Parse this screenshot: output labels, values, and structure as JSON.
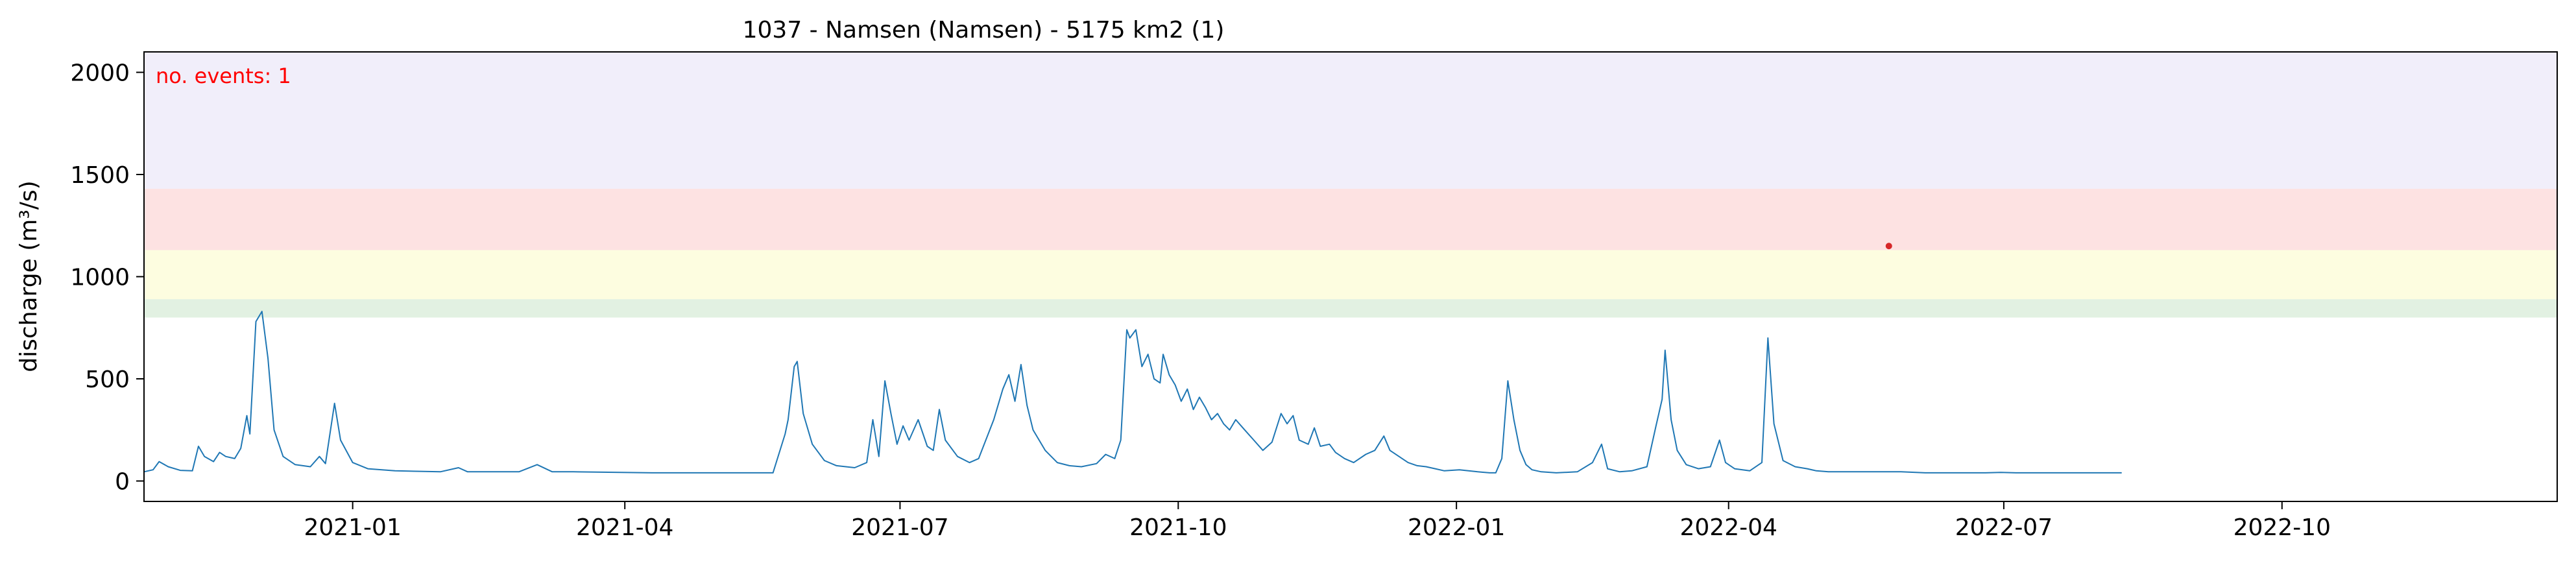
{
  "chart_data": {
    "type": "line",
    "title": "1037 - Namsen (Namsen) - 5175 km2 (1)",
    "xlabel": "",
    "ylabel": "discharge (m³/s)",
    "ylim": [
      -100,
      2100
    ],
    "xlim": [
      "2020-10-24",
      "2022-12-31"
    ],
    "grid": false,
    "y_ticks": [
      0,
      500,
      1000,
      1500,
      2000
    ],
    "x_ticks": [
      {
        "date": "2021-01-01",
        "label": "2021-01"
      },
      {
        "date": "2021-04-01",
        "label": "2021-04"
      },
      {
        "date": "2021-07-01",
        "label": "2021-07"
      },
      {
        "date": "2021-10-01",
        "label": "2021-10"
      },
      {
        "date": "2022-01-01",
        "label": "2022-01"
      },
      {
        "date": "2022-04-01",
        "label": "2022-04"
      },
      {
        "date": "2022-07-01",
        "label": "2022-07"
      },
      {
        "date": "2022-10-01",
        "label": "2022-10"
      }
    ],
    "threshold_bands": [
      {
        "from": 800,
        "to": 890,
        "color": "#e2f1e2"
      },
      {
        "from": 890,
        "to": 1130,
        "color": "#fdfde0"
      },
      {
        "from": 1130,
        "to": 1430,
        "color": "#fde2e2"
      },
      {
        "from": 1430,
        "to": 2100,
        "color": "#f1eefa"
      }
    ],
    "annotation": {
      "text": "no. events: 1",
      "color": "#ff0000"
    },
    "events": [
      {
        "date": "2022-05-24",
        "value": 1150,
        "color": "#d62728"
      }
    ],
    "series": [
      {
        "color": "#1f77b4",
        "points": [
          [
            "2020-10-24",
            45
          ],
          [
            "2020-10-27",
            55
          ],
          [
            "2020-10-29",
            95
          ],
          [
            "2020-11-01",
            70
          ],
          [
            "2020-11-05",
            52
          ],
          [
            "2020-11-09",
            50
          ],
          [
            "2020-11-11",
            170
          ],
          [
            "2020-11-13",
            120
          ],
          [
            "2020-11-16",
            95
          ],
          [
            "2020-11-18",
            140
          ],
          [
            "2020-11-20",
            120
          ],
          [
            "2020-11-23",
            110
          ],
          [
            "2020-11-25",
            160
          ],
          [
            "2020-11-27",
            320
          ],
          [
            "2020-11-28",
            230
          ],
          [
            "2020-11-30",
            780
          ],
          [
            "2020-12-02",
            830
          ],
          [
            "2020-12-04",
            600
          ],
          [
            "2020-12-06",
            250
          ],
          [
            "2020-12-09",
            120
          ],
          [
            "2020-12-13",
            80
          ],
          [
            "2020-12-18",
            70
          ],
          [
            "2020-12-21",
            120
          ],
          [
            "2020-12-23",
            85
          ],
          [
            "2020-12-26",
            380
          ],
          [
            "2020-12-28",
            200
          ],
          [
            "2021-01-01",
            90
          ],
          [
            "2021-01-06",
            60
          ],
          [
            "2021-01-15",
            50
          ],
          [
            "2021-01-30",
            45
          ],
          [
            "2021-02-05",
            65
          ],
          [
            "2021-02-08",
            45
          ],
          [
            "2021-02-25",
            45
          ],
          [
            "2021-03-03",
            80
          ],
          [
            "2021-03-08",
            45
          ],
          [
            "2021-03-15",
            45
          ],
          [
            "2021-04-10",
            40
          ],
          [
            "2021-04-25",
            40
          ],
          [
            "2021-05-10",
            40
          ],
          [
            "2021-05-20",
            40
          ],
          [
            "2021-05-24",
            230
          ],
          [
            "2021-05-25",
            300
          ],
          [
            "2021-05-27",
            560
          ],
          [
            "2021-05-28",
            585
          ],
          [
            "2021-05-30",
            330
          ],
          [
            "2021-06-02",
            180
          ],
          [
            "2021-06-06",
            100
          ],
          [
            "2021-06-10",
            75
          ],
          [
            "2021-06-16",
            65
          ],
          [
            "2021-06-20",
            90
          ],
          [
            "2021-06-22",
            300
          ],
          [
            "2021-06-24",
            120
          ],
          [
            "2021-06-26",
            490
          ],
          [
            "2021-06-28",
            330
          ],
          [
            "2021-06-30",
            180
          ],
          [
            "2021-07-02",
            270
          ],
          [
            "2021-07-04",
            200
          ],
          [
            "2021-07-07",
            300
          ],
          [
            "2021-07-10",
            170
          ],
          [
            "2021-07-12",
            150
          ],
          [
            "2021-07-14",
            350
          ],
          [
            "2021-07-16",
            200
          ],
          [
            "2021-07-20",
            120
          ],
          [
            "2021-07-24",
            90
          ],
          [
            "2021-07-27",
            110
          ],
          [
            "2021-08-01",
            300
          ],
          [
            "2021-08-04",
            450
          ],
          [
            "2021-08-06",
            520
          ],
          [
            "2021-08-08",
            390
          ],
          [
            "2021-08-10",
            570
          ],
          [
            "2021-08-12",
            370
          ],
          [
            "2021-08-14",
            250
          ],
          [
            "2021-08-18",
            150
          ],
          [
            "2021-08-22",
            90
          ],
          [
            "2021-08-26",
            75
          ],
          [
            "2021-08-30",
            70
          ],
          [
            "2021-09-04",
            85
          ],
          [
            "2021-09-07",
            130
          ],
          [
            "2021-09-10",
            110
          ],
          [
            "2021-09-12",
            200
          ],
          [
            "2021-09-14",
            740
          ],
          [
            "2021-09-15",
            700
          ],
          [
            "2021-09-17",
            740
          ],
          [
            "2021-09-19",
            560
          ],
          [
            "2021-09-21",
            620
          ],
          [
            "2021-09-23",
            500
          ],
          [
            "2021-09-25",
            480
          ],
          [
            "2021-09-26",
            620
          ],
          [
            "2021-09-28",
            520
          ],
          [
            "2021-09-30",
            470
          ],
          [
            "2021-10-02",
            390
          ],
          [
            "2021-10-04",
            450
          ],
          [
            "2021-10-06",
            350
          ],
          [
            "2021-10-08",
            410
          ],
          [
            "2021-10-10",
            360
          ],
          [
            "2021-10-12",
            300
          ],
          [
            "2021-10-14",
            330
          ],
          [
            "2021-10-16",
            280
          ],
          [
            "2021-10-18",
            250
          ],
          [
            "2021-10-20",
            300
          ],
          [
            "2021-10-23",
            250
          ],
          [
            "2021-10-26",
            200
          ],
          [
            "2021-10-29",
            150
          ],
          [
            "2021-11-01",
            190
          ],
          [
            "2021-11-04",
            330
          ],
          [
            "2021-11-06",
            280
          ],
          [
            "2021-11-08",
            320
          ],
          [
            "2021-11-10",
            200
          ],
          [
            "2021-11-13",
            180
          ],
          [
            "2021-11-15",
            260
          ],
          [
            "2021-11-17",
            170
          ],
          [
            "2021-11-20",
            180
          ],
          [
            "2021-11-22",
            140
          ],
          [
            "2021-11-25",
            110
          ],
          [
            "2021-11-28",
            90
          ],
          [
            "2021-12-02",
            130
          ],
          [
            "2021-12-05",
            150
          ],
          [
            "2021-12-08",
            220
          ],
          [
            "2021-12-10",
            150
          ],
          [
            "2021-12-13",
            120
          ],
          [
            "2021-12-16",
            90
          ],
          [
            "2021-12-19",
            75
          ],
          [
            "2021-12-22",
            70
          ],
          [
            "2021-12-25",
            60
          ],
          [
            "2021-12-28",
            50
          ],
          [
            "2022-01-02",
            55
          ],
          [
            "2022-01-08",
            45
          ],
          [
            "2022-01-12",
            40
          ],
          [
            "2022-01-14",
            40
          ],
          [
            "2022-01-16",
            110
          ],
          [
            "2022-01-18",
            490
          ],
          [
            "2022-01-20",
            300
          ],
          [
            "2022-01-22",
            150
          ],
          [
            "2022-01-24",
            80
          ],
          [
            "2022-01-26",
            55
          ],
          [
            "2022-01-29",
            45
          ],
          [
            "2022-02-03",
            40
          ],
          [
            "2022-02-10",
            45
          ],
          [
            "2022-02-15",
            90
          ],
          [
            "2022-02-18",
            180
          ],
          [
            "2022-02-20",
            60
          ],
          [
            "2022-02-24",
            45
          ],
          [
            "2022-02-28",
            50
          ],
          [
            "2022-03-05",
            70
          ],
          [
            "2022-03-08",
            270
          ],
          [
            "2022-03-10",
            400
          ],
          [
            "2022-03-11",
            640
          ],
          [
            "2022-03-13",
            300
          ],
          [
            "2022-03-15",
            150
          ],
          [
            "2022-03-18",
            80
          ],
          [
            "2022-03-22",
            60
          ],
          [
            "2022-03-26",
            70
          ],
          [
            "2022-03-29",
            200
          ],
          [
            "2022-03-31",
            90
          ],
          [
            "2022-04-03",
            60
          ],
          [
            "2022-04-08",
            50
          ],
          [
            "2022-04-12",
            90
          ],
          [
            "2022-04-14",
            700
          ],
          [
            "2022-04-16",
            280
          ],
          [
            "2022-04-19",
            100
          ],
          [
            "2022-04-23",
            70
          ],
          [
            "2022-04-27",
            60
          ],
          [
            "2022-04-30",
            50
          ],
          [
            "2022-05-04",
            45
          ],
          [
            "2022-05-08",
            45
          ],
          [
            "2022-05-12",
            45
          ],
          [
            "2022-05-16",
            45
          ],
          [
            "2022-05-18",
            45
          ],
          [
            "2022-05-24",
            45
          ],
          [
            "2022-05-28",
            45
          ],
          [
            "2022-06-05",
            40
          ],
          [
            "2022-06-10",
            40
          ],
          [
            "2022-06-15",
            40
          ],
          [
            "2022-06-20",
            40
          ],
          [
            "2022-06-25",
            40
          ],
          [
            "2022-06-30",
            42
          ],
          [
            "2022-07-05",
            40
          ],
          [
            "2022-07-10",
            40
          ],
          [
            "2022-07-15",
            40
          ],
          [
            "2022-07-20",
            40
          ],
          [
            "2022-07-25",
            40
          ],
          [
            "2022-07-30",
            40
          ],
          [
            "2022-08-04",
            40
          ],
          [
            "2022-08-09",
            40
          ]
        ]
      }
    ]
  }
}
